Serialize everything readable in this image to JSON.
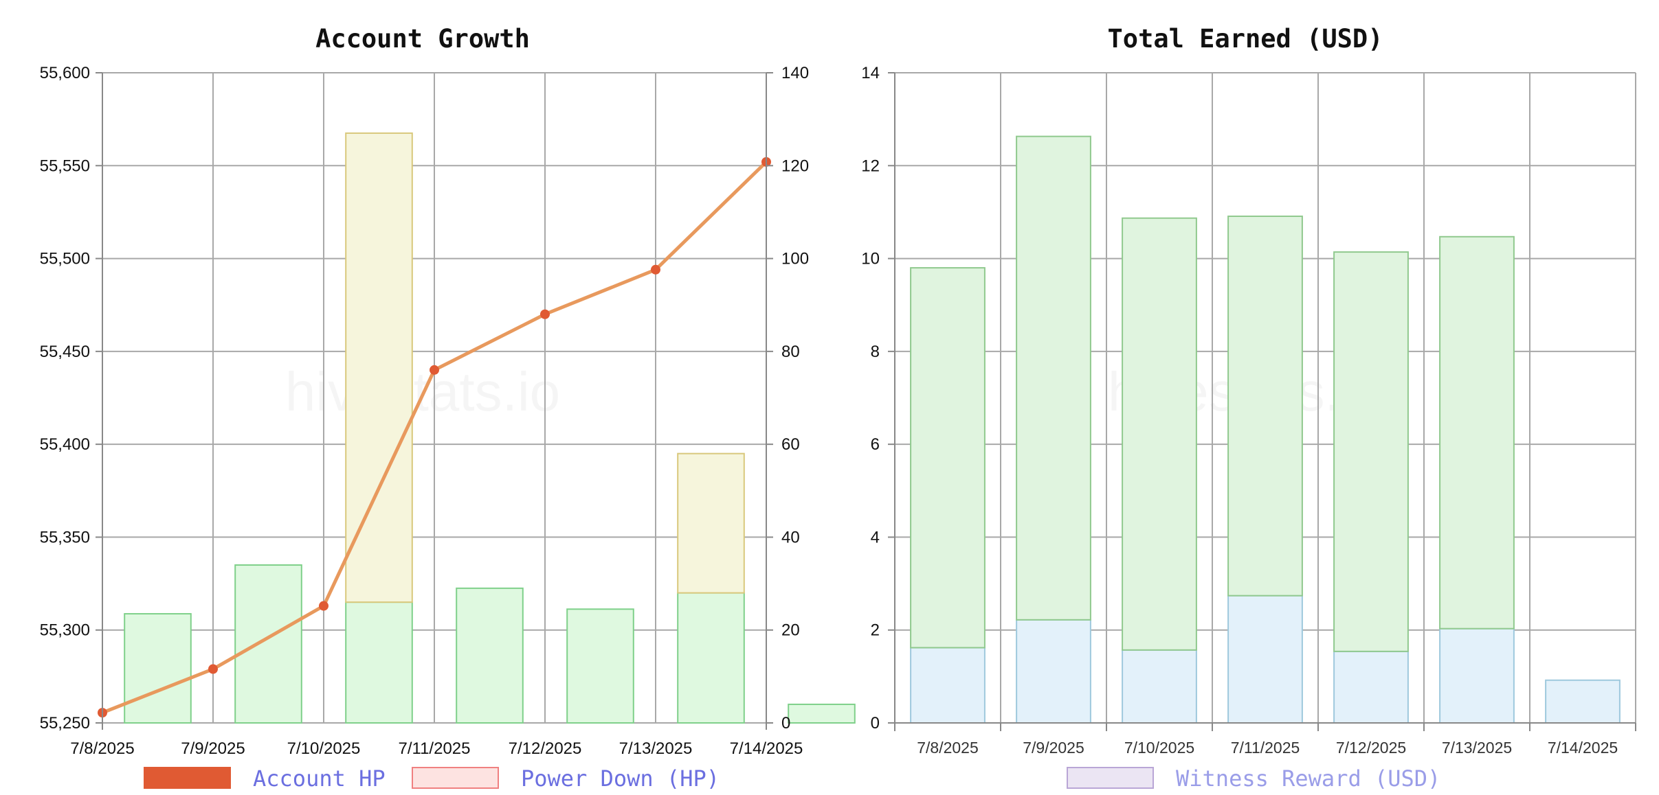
{
  "watermark": "hivestats.io",
  "chart_data": [
    {
      "type": "bar",
      "title": "Account Growth",
      "categories": [
        "7/8/2025",
        "7/9/2025",
        "7/10/2025",
        "7/11/2025",
        "7/12/2025",
        "7/13/2025",
        "7/14/2025"
      ],
      "y_left": {
        "ylim": [
          55250,
          55600
        ],
        "ticks": [
          "55,250",
          "55,300",
          "55,350",
          "55,400",
          "55,450",
          "55,500",
          "55,550",
          "55,600"
        ]
      },
      "y_right": {
        "ylim": [
          0,
          140
        ],
        "ticks": [
          "0",
          "20",
          "40",
          "60",
          "80",
          "100",
          "120",
          "140"
        ]
      },
      "grid": true,
      "legend_position": "bottom",
      "series": [
        {
          "name": "Account HP",
          "kind": "line",
          "axis": "left",
          "color": "#e05a33",
          "line_color": "#e8995d",
          "values": [
            55255.5,
            55279,
            55313,
            55440,
            55470,
            55494,
            55552
          ]
        },
        {
          "name": "Power Down (HP)",
          "kind": "bar",
          "axis": "right",
          "color": "#fde3e1",
          "border": "#f08080",
          "values": [
            0,
            0,
            0,
            0,
            0,
            0,
            0
          ]
        },
        {
          "kind": "bar",
          "axis": "right",
          "stack": "s",
          "color": "#dff9e0",
          "border": "#7fd08a",
          "values": [
            23.5,
            34,
            26,
            29,
            24.5,
            28,
            4
          ]
        },
        {
          "kind": "bar",
          "axis": "right",
          "stack": "s",
          "color": "#f6f5dc",
          "border": "#d9c87c",
          "values": [
            0,
            0,
            101,
            0,
            0,
            30,
            0
          ]
        }
      ]
    },
    {
      "type": "bar",
      "title": "Total Earned (USD)",
      "categories": [
        "7/8/2025",
        "7/9/2025",
        "7/10/2025",
        "7/11/2025",
        "7/12/2025",
        "7/13/2025",
        "7/14/2025"
      ],
      "ylim": [
        0,
        14
      ],
      "y_ticks": [
        "0",
        "2",
        "4",
        "6",
        "8",
        "10",
        "12",
        "14"
      ],
      "grid": true,
      "legend_position": "bottom",
      "series": [
        {
          "kind": "bar",
          "stack": "s",
          "color": "#e3f1fa",
          "border": "#9ec9dd",
          "values": [
            1.62,
            2.22,
            1.57,
            2.74,
            1.54,
            2.03,
            0.92
          ]
        },
        {
          "kind": "bar",
          "stack": "s",
          "color": "#e0f4df",
          "border": "#90c98e",
          "values": [
            8.18,
            10.41,
            9.3,
            8.17,
            8.6,
            8.44,
            0
          ]
        },
        {
          "name": "Witness Reward (USD)",
          "kind": "bar",
          "stack": "s",
          "color": "#ebe5f3",
          "border": "#b9a6d6",
          "values": [
            0,
            0,
            0,
            0,
            0,
            0,
            0
          ]
        }
      ]
    }
  ]
}
